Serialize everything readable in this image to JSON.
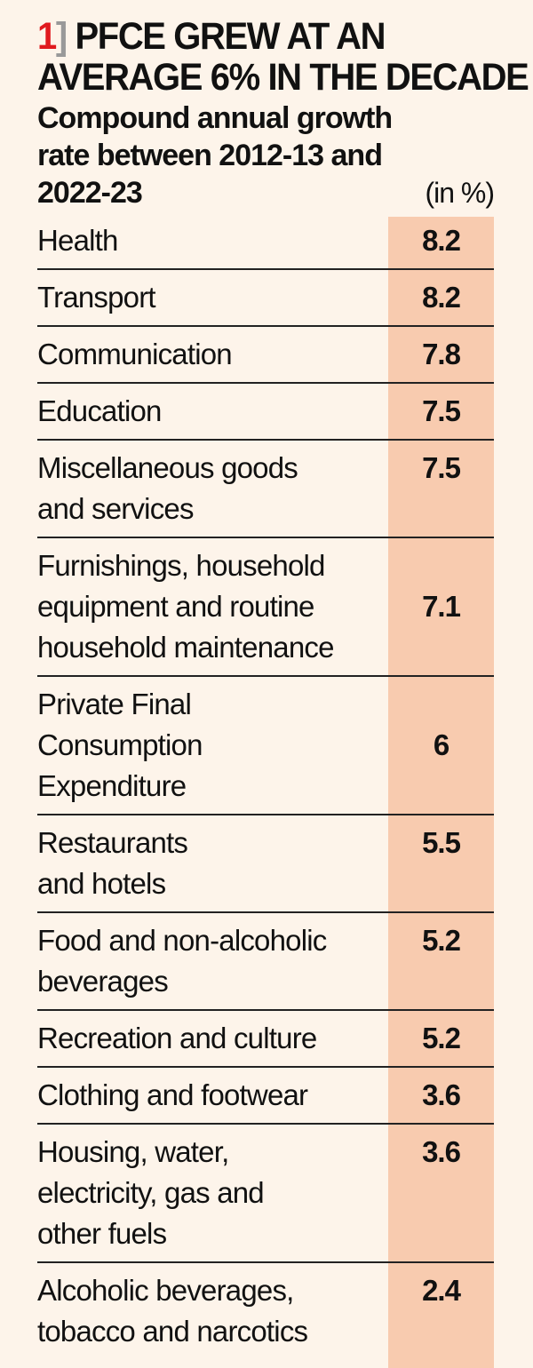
{
  "title": {
    "number": "1",
    "bracket": "]",
    "line1": "PFCE GREW AT AN",
    "line2": "AVERAGE 6% IN THE DECADE"
  },
  "subtitle": "Compound annual growth rate between 2012-13 and 2022-23",
  "unit": "(in %)",
  "colors": {
    "background": "#fdf4ea",
    "value_column": "#f8cbaf",
    "accent": "#e0191e"
  },
  "chart_data": {
    "type": "table",
    "title": "PFCE GREW AT AN AVERAGE 6% IN THE DECADE",
    "subtitle": "Compound annual growth rate between 2012-13 and 2022-23",
    "unit": "(in %)",
    "rows": [
      {
        "label": "Health",
        "value": "8.2"
      },
      {
        "label": "Transport",
        "value": "8.2"
      },
      {
        "label": "Communication",
        "value": "7.8"
      },
      {
        "label": "Education",
        "value": "7.5"
      },
      {
        "label": "Miscellaneous goods and services",
        "value": "7.5"
      },
      {
        "label": "Furnishings, household equipment and routine household maintenance",
        "value": "7.1"
      },
      {
        "label": "Private Final Consumption Expenditure",
        "value": "6"
      },
      {
        "label": "Restaurants and hotels",
        "value": "5.5"
      },
      {
        "label": "Food and non-alcoholic beverages",
        "value": "5.2"
      },
      {
        "label": "Recreation and culture",
        "value": "5.2"
      },
      {
        "label": "Clothing and footwear",
        "value": "3.6"
      },
      {
        "label": "Housing, water, electricity, gas and other fuels",
        "value": "3.6"
      },
      {
        "label": "Alcoholic beverages, tobacco and narcotics",
        "value": "2.4"
      }
    ]
  }
}
